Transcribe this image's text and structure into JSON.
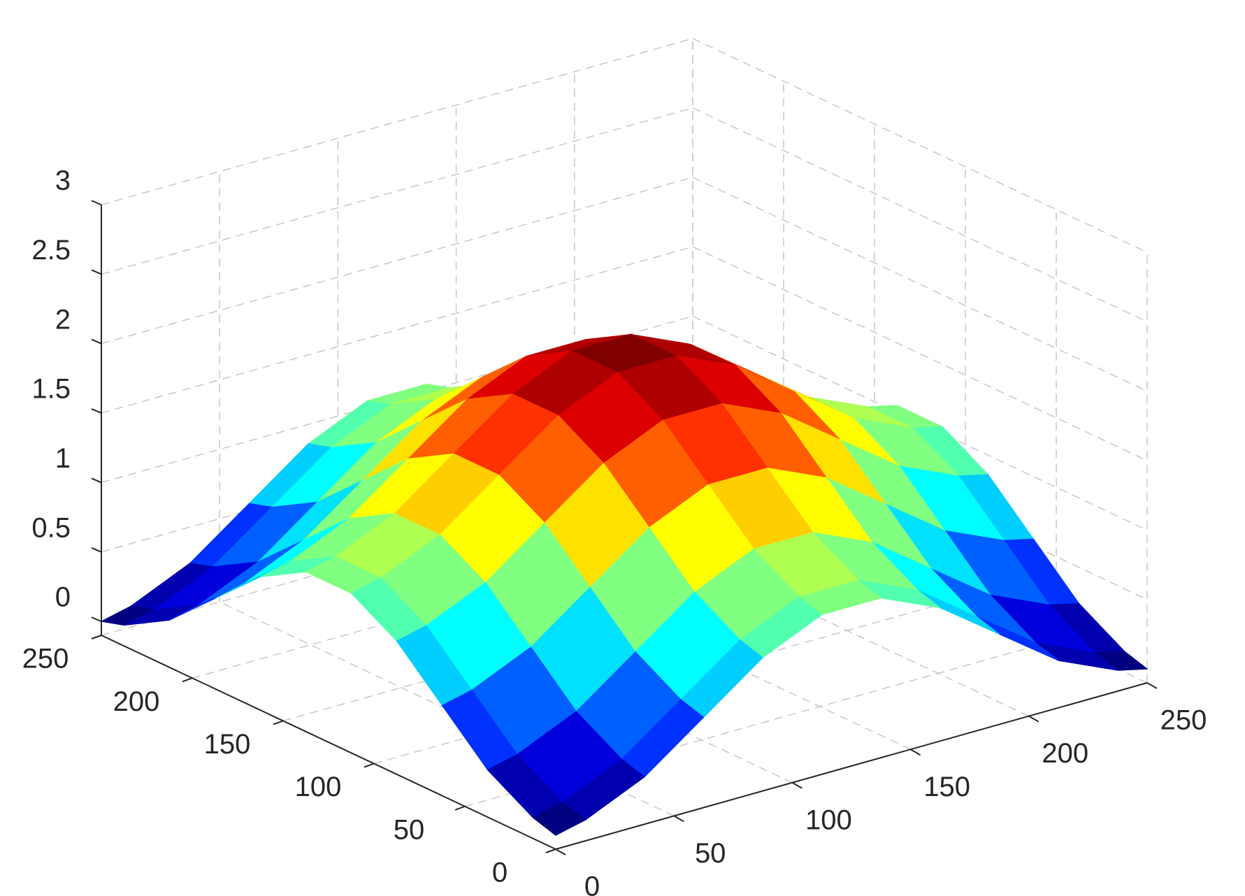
{
  "chart_data": {
    "type": "surface",
    "colormap": "jet",
    "grid": true,
    "x": [
      0,
      25,
      50,
      75,
      100,
      125,
      150,
      175,
      200,
      225,
      250
    ],
    "y": [
      0,
      25,
      50,
      75,
      100,
      125,
      150,
      175,
      200,
      225,
      250
    ],
    "z": [
      [
        0,
        0.1,
        0.38,
        0.72,
        1,
        1.1,
        1,
        0.72,
        0.38,
        0.1,
        0
      ],
      [
        0.1,
        0.2,
        0.48,
        0.82,
        1.1,
        1.2,
        1.1,
        0.82,
        0.48,
        0.2,
        0.1
      ],
      [
        0.38,
        0.48,
        0.76,
        1.1,
        1.38,
        1.48,
        1.38,
        1.1,
        0.76,
        0.48,
        0.38
      ],
      [
        0.72,
        0.82,
        1.1,
        1.44,
        1.72,
        1.82,
        1.72,
        1.44,
        1.1,
        0.82,
        0.72
      ],
      [
        1,
        1.1,
        1.38,
        1.72,
        2,
        2.1,
        2,
        1.72,
        1.38,
        1.1,
        1
      ],
      [
        1.1,
        1.2,
        1.48,
        1.82,
        2.1,
        2.2,
        2.1,
        1.82,
        1.48,
        1.2,
        1.1
      ],
      [
        1,
        1.1,
        1.38,
        1.72,
        2,
        2.1,
        2,
        1.72,
        1.38,
        1.1,
        1
      ],
      [
        0.72,
        0.82,
        1.1,
        1.44,
        1.72,
        1.82,
        1.72,
        1.44,
        1.1,
        0.82,
        0.72
      ],
      [
        0.38,
        0.48,
        0.76,
        1.1,
        1.38,
        1.48,
        1.38,
        1.1,
        0.76,
        0.48,
        0.38
      ],
      [
        0.1,
        0.2,
        0.48,
        0.82,
        1.1,
        1.2,
        1.1,
        0.82,
        0.48,
        0.2,
        0.1
      ],
      [
        0,
        0.1,
        0.38,
        0.72,
        1,
        1.1,
        1,
        0.72,
        0.38,
        0.1,
        0
      ]
    ],
    "xlim": [
      0,
      250
    ],
    "ylim": [
      0,
      250
    ],
    "zlim": [
      -0.1,
      3
    ],
    "xticks": [
      0,
      50,
      100,
      150,
      200,
      250
    ],
    "yticks": [
      0,
      50,
      100,
      150,
      200,
      250
    ],
    "zticks": [
      0,
      0.5,
      1,
      1.5,
      2,
      2.5,
      3
    ]
  }
}
